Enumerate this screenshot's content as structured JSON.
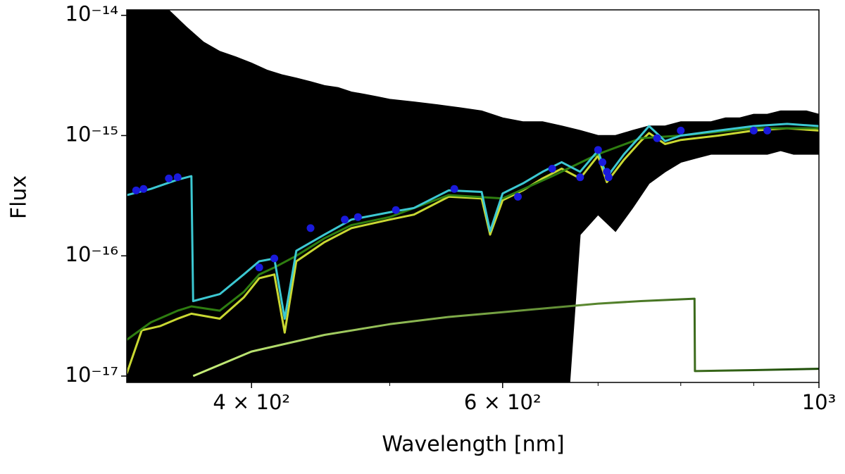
{
  "chart_data": {
    "type": "line",
    "xlabel": "Wavelength [nm]",
    "ylabel": "Flux",
    "xscale": "log",
    "yscale": "log",
    "xlim": [
      327,
      1000
    ],
    "ylim": [
      8.85e-18,
      1.11e-14
    ],
    "xticks": [
      {
        "value": 400,
        "label": "4 × 10²"
      },
      {
        "value": 600,
        "label": "6 × 10²"
      },
      {
        "value": 1000,
        "label": "10³"
      }
    ],
    "xminorticks": [
      500,
      700,
      800,
      900
    ],
    "yticks": [
      {
        "value": 1e-17,
        "label": "10⁻¹⁷"
      },
      {
        "value": 1e-16,
        "label": "10⁻¹⁶"
      },
      {
        "value": 1e-15,
        "label": "10⁻¹⁵"
      },
      {
        "value": 1e-14,
        "label": "10⁻¹⁴"
      }
    ],
    "series": [
      {
        "kind": "band",
        "color": "#000000",
        "x": [
          327,
          340,
          350,
          360,
          370,
          380,
          390,
          400,
          410,
          420,
          430,
          440,
          450,
          460,
          470,
          480,
          490,
          500,
          520,
          540,
          560,
          580,
          600,
          620,
          640,
          660,
          680,
          700,
          720,
          740,
          760,
          780,
          800,
          820,
          840,
          860,
          880,
          900,
          920,
          940,
          960,
          980,
          1000
        ],
        "values": [
          1.2e-14,
          1.2e-14,
          1.1e-14,
          8e-15,
          6e-15,
          5e-15,
          4.5e-15,
          4e-15,
          3.5e-15,
          3.2e-15,
          3e-15,
          2.8e-15,
          2.6e-15,
          2.5e-15,
          2.3e-15,
          2.2e-15,
          2.1e-15,
          2e-15,
          1.9e-15,
          1.8e-15,
          1.7e-15,
          1.6e-15,
          1.4e-15,
          1.3e-15,
          1.3e-15,
          1.2e-15,
          1.1e-15,
          1e-15,
          1e-15,
          1.1e-15,
          1.2e-15,
          1.2e-15,
          1.3e-15,
          1.3e-15,
          1.3e-15,
          1.4e-15,
          1.4e-15,
          1.5e-15,
          1.5e-15,
          1.6e-15,
          1.6e-15,
          1.6e-15,
          1.5e-15
        ],
        "low": [
          1e-18,
          1e-18,
          1e-18,
          1e-18,
          1e-18,
          1e-18,
          1e-18,
          1e-18,
          1e-18,
          1e-18,
          1e-18,
          1e-18,
          1e-18,
          1e-18,
          1e-18,
          1e-18,
          1e-18,
          1e-18,
          1e-18,
          1e-18,
          1e-18,
          1e-18,
          1e-18,
          1e-18,
          1e-18,
          1e-18,
          1.5e-16,
          2.2e-16,
          1.6e-16,
          2.5e-16,
          4e-16,
          5e-16,
          6e-16,
          6.5e-16,
          7e-16,
          7e-16,
          7e-16,
          7e-16,
          7e-16,
          7.5e-16,
          7e-16,
          7e-16,
          7e-16
        ]
      },
      {
        "kind": "line",
        "color": "#c9d832",
        "x": [
          327,
          335,
          345,
          355,
          363,
          380,
          395,
          405,
          415,
          422,
          430,
          450,
          470,
          500,
          520,
          550,
          580,
          588,
          600,
          620,
          640,
          660,
          680,
          700,
          710,
          730,
          750,
          760,
          780,
          800,
          850,
          900,
          950,
          1000
        ],
        "values": [
          1.05e-17,
          2.4e-17,
          2.6e-17,
          3e-17,
          3.3e-17,
          3e-17,
          4.5e-17,
          6.5e-17,
          7e-17,
          2.3e-17,
          9e-17,
          1.3e-16,
          1.7e-16,
          2e-16,
          2.2e-16,
          3.1e-16,
          3e-16,
          1.5e-16,
          2.9e-16,
          3.5e-16,
          4.4e-16,
          5.3e-16,
          4.4e-16,
          6.8e-16,
          4.1e-16,
          6.3e-16,
          9e-16,
          1.05e-15,
          8.5e-16,
          9.2e-16,
          1e-15,
          1.1e-15,
          1.15e-15,
          1.1e-15
        ]
      },
      {
        "kind": "line",
        "color": "#2e7d10",
        "x": [
          327,
          340,
          355,
          363,
          380,
          395,
          405,
          415,
          430,
          450,
          470,
          500,
          550,
          600,
          650,
          700,
          750,
          800,
          900,
          1000
        ],
        "values": [
          2e-17,
          2.8e-17,
          3.5e-17,
          3.8e-17,
          3.5e-17,
          5e-17,
          7e-17,
          8e-17,
          1e-16,
          1.4e-16,
          1.8e-16,
          2.1e-16,
          3.2e-16,
          3e-16,
          4.6e-16,
          7e-16,
          9.5e-16,
          1e-15,
          1.15e-15,
          1.15e-15
        ]
      },
      {
        "kind": "line",
        "color": "#3cc8d2",
        "x": [
          327,
          340,
          355,
          363,
          364,
          380,
          395,
          405,
          415,
          422,
          430,
          450,
          470,
          500,
          520,
          550,
          580,
          588,
          600,
          620,
          640,
          660,
          680,
          700,
          710,
          730,
          750,
          760,
          780,
          800,
          850,
          900,
          950,
          1000
        ],
        "values": [
          3.2e-16,
          3.6e-16,
          4.3e-16,
          4.6e-16,
          4.2e-17,
          4.8e-17,
          7e-17,
          9e-17,
          9.5e-17,
          3e-17,
          1.1e-16,
          1.5e-16,
          2e-16,
          2.3e-16,
          2.5e-16,
          3.5e-16,
          3.4e-16,
          1.6e-16,
          3.3e-16,
          4e-16,
          5e-16,
          6e-16,
          5e-16,
          7.5e-16,
          4.5e-16,
          7e-16,
          1e-15,
          1.2e-15,
          9e-16,
          1e-15,
          1.1e-15,
          1.2e-15,
          1.25e-15,
          1.2e-15
        ]
      },
      {
        "kind": "line",
        "gradient": [
          "#c8f07a",
          "#1a4a05"
        ],
        "x": [
          364,
          400,
          450,
          500,
          550,
          600,
          650,
          700,
          750,
          818,
          818.5,
          900,
          1000
        ],
        "values": [
          1e-17,
          1.6e-17,
          2.2e-17,
          2.7e-17,
          3.1e-17,
          3.4e-17,
          3.7e-17,
          4e-17,
          4.2e-17,
          4.4e-17,
          1.1e-17,
          1.12e-17,
          1.15e-17
        ]
      },
      {
        "kind": "scatter",
        "color": "#1a1adc",
        "x": [
          332,
          336,
          350,
          355,
          405,
          415,
          440,
          465,
          475,
          505,
          555,
          615,
          650,
          680,
          700,
          705,
          710,
          712,
          770,
          800,
          900,
          920
        ],
        "values": [
          3.5e-16,
          3.6e-16,
          4.4e-16,
          4.5e-16,
          8e-17,
          9.5e-17,
          1.7e-16,
          2e-16,
          2.1e-16,
          2.4e-16,
          3.6e-16,
          3.1e-16,
          5.3e-16,
          4.5e-16,
          7.6e-16,
          6e-16,
          5e-16,
          4.5e-16,
          9.5e-16,
          1.1e-15,
          1.1e-15,
          1.1e-15
        ]
      }
    ]
  }
}
